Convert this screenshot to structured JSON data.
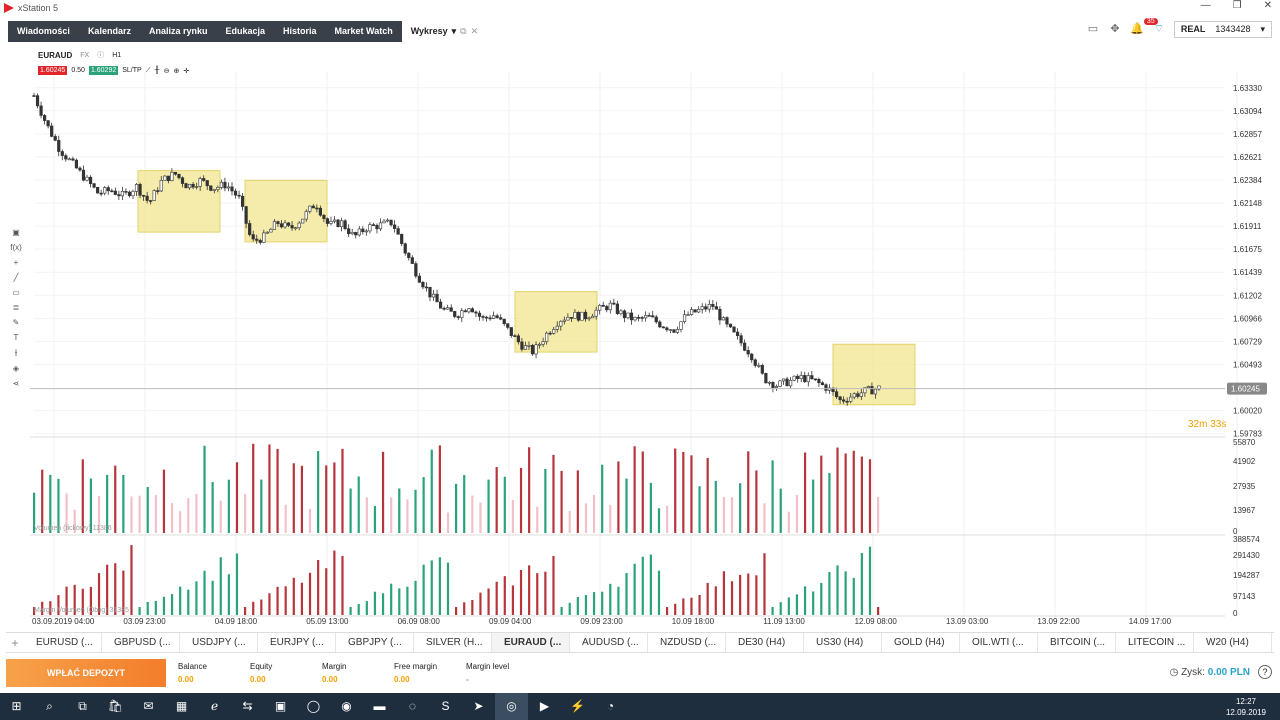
{
  "window": {
    "title": "xStation 5"
  },
  "nav": {
    "items": [
      "Wiadomości",
      "Kalendarz",
      "Analiza rynku",
      "Edukacja",
      "Historia",
      "Market Watch"
    ],
    "active": "Wykresy"
  },
  "account": {
    "notifications": "35",
    "type": "REAL",
    "number": "1343428"
  },
  "chart_header": {
    "symbol": "EURAUD",
    "type": "FX",
    "timeframe": "H1",
    "sell": "1.60245",
    "spread": "0.50",
    "buy": "1.60292",
    "sltp": "SL/TP"
  },
  "chart_data": {
    "type": "candlestick",
    "symbol": "EURAUD",
    "timeframe": "H1",
    "y_ticks": [
      "1.63330",
      "1.63094",
      "1.62857",
      "1.62621",
      "1.62384",
      "1.62148",
      "1.61911",
      "1.61675",
      "1.61439",
      "1.61202",
      "1.60966",
      "1.60729",
      "1.60493",
      "1.60020",
      "1.59783"
    ],
    "ylim": [
      1.5978,
      1.6343
    ],
    "current_price": "1.60245",
    "countdown": "32m 33s",
    "x_ticks": [
      "03.09.2019 04:00",
      "03.09 23:00",
      "04.09 18:00",
      "05.09 13:00",
      "06.09 08:00",
      "09.09 04:00",
      "09.09 23:00",
      "10.09 18:00",
      "11.09 13:00",
      "12.09 08:00",
      "13.09 03:00",
      "13.09 22:00",
      "14.09 17:00"
    ],
    "close_path": [
      1.6325,
      1.6295,
      1.627,
      1.6255,
      1.624,
      1.6225,
      1.6228,
      1.6222,
      1.6232,
      1.6215,
      1.6238,
      1.6245,
      1.6232,
      1.6238,
      1.623,
      1.6234,
      1.622,
      1.6175,
      1.618,
      1.6195,
      1.6188,
      1.62,
      1.6215,
      1.6192,
      1.6195,
      1.618,
      1.619,
      1.6192,
      1.6195,
      1.6165,
      1.614,
      1.612,
      1.6105,
      1.61,
      1.611,
      1.6096,
      1.61,
      1.6085,
      1.607,
      1.6062,
      1.608,
      1.6095,
      1.61,
      1.6098,
      1.6105,
      1.611,
      1.61,
      1.6095,
      1.6098,
      1.609,
      1.6085,
      1.61,
      1.6105,
      1.611,
      1.609,
      1.6075,
      1.606,
      1.6035,
      1.6028,
      1.6032,
      1.6036,
      1.6032,
      1.6025,
      1.6012,
      1.6018,
      1.6022,
      1.6025
    ],
    "highlight_boxes": [
      "03.09 23:00 - 04.09 18:00",
      "04.09 18:00 - 05.09 13:00",
      "09.09 04:00 - 09.09 23:00",
      "11.09 13:00 - 12.09 08:00"
    ],
    "volume_panel": {
      "label": "Volumen (tickowy) 11386",
      "ticks": [
        "55870",
        "41902",
        "27935",
        "13967",
        "0"
      ]
    },
    "margin_panel": {
      "label": "Margin Volumen (Oblig) 31385",
      "ticks": [
        "388574",
        "291430",
        "194287",
        "97143",
        "0"
      ]
    }
  },
  "tabs": [
    "EURUSD (...",
    "GBPUSD (...",
    "USDJPY (...",
    "EURJPY (...",
    "GBPJPY (...",
    "SILVER (H...",
    "EURAUD (...",
    "AUDUSD (...",
    "NZDUSD (...",
    "DE30 (H4)",
    "US30 (H4)",
    "GOLD (H4)",
    "OIL.WTI (...",
    "BITCOIN (...",
    "LITECOIN ...",
    "W20 (H4)"
  ],
  "active_tab": "EURAUD (...",
  "footer": {
    "deposit": "WPŁAĆ DEPOZYT",
    "stats": [
      {
        "label": "Balance",
        "value": "0.00"
      },
      {
        "label": "Equity",
        "value": "0.00"
      },
      {
        "label": "Margin",
        "value": "0.00"
      },
      {
        "label": "Free margin",
        "value": "0.00"
      },
      {
        "label": "Margin level",
        "value": "-"
      }
    ],
    "profit_label": "Zysk:",
    "profit_value": "0.00 PLN"
  },
  "clock": {
    "time": "12:27",
    "date": "12.09.2019"
  },
  "colors": {
    "up": "#2aa37a",
    "down": "#b5353a",
    "highlight": "#f2e690",
    "nav": "#3a4049"
  }
}
